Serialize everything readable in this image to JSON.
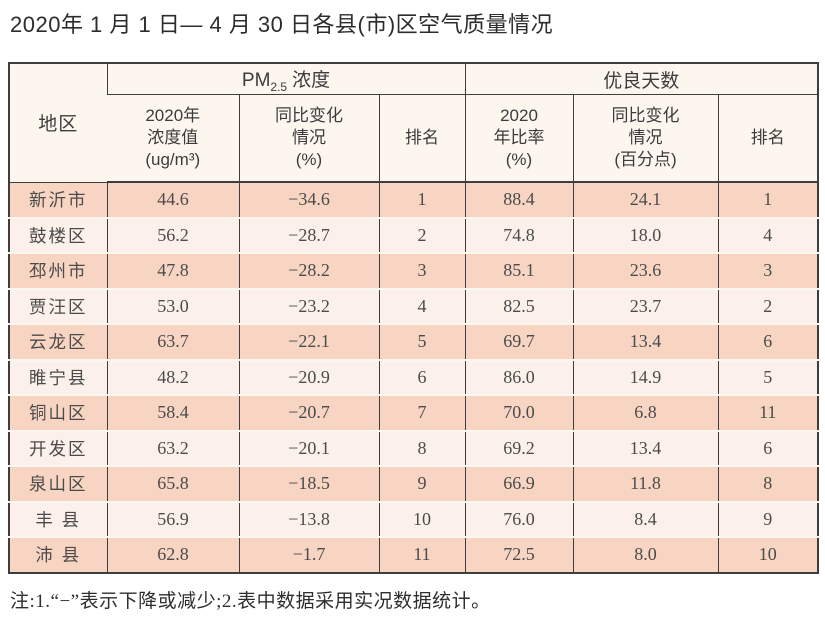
{
  "page": {
    "title": "2020年 1 月 1 日— 4 月 30 日各县(市)区空气质量情况"
  },
  "colors": {
    "row_odd_bg": "#f8d5c3",
    "row_even_bg": "#fbf1ea",
    "header_bg": "#fdf6ef",
    "border": "#3e3e3e",
    "text": "#4b4b4b"
  },
  "table": {
    "header": {
      "region": "地区",
      "pm_group": {
        "prefix": "PM",
        "sub": "2.5",
        "suffix": "浓度"
      },
      "good_days_group": "优良天数",
      "sub_headers": [
        "2020年\n浓度值\n(ug/m³)",
        "同比变化\n情况\n(%)",
        "排名",
        "2020\n年比率\n(%)",
        "同比变化\n情况\n(百分点)",
        "排名"
      ]
    },
    "rows": [
      [
        "新沂市",
        "44.6",
        "−34.6",
        "1",
        "88.4",
        "24.1",
        "1"
      ],
      [
        "鼓楼区",
        "56.2",
        "−28.7",
        "2",
        "74.8",
        "18.0",
        "4"
      ],
      [
        "邳州市",
        "47.8",
        "−28.2",
        "3",
        "85.1",
        "23.6",
        "3"
      ],
      [
        "贾汪区",
        "53.0",
        "−23.2",
        "4",
        "82.5",
        "23.7",
        "2"
      ],
      [
        "云龙区",
        "63.7",
        "−22.1",
        "5",
        "69.7",
        "13.4",
        "6"
      ],
      [
        "睢宁县",
        "48.2",
        "−20.9",
        "6",
        "86.0",
        "14.9",
        "5"
      ],
      [
        "铜山区",
        "58.4",
        "−20.7",
        "7",
        "70.0",
        "6.8",
        "11"
      ],
      [
        "开发区",
        "63.2",
        "−20.1",
        "8",
        "69.2",
        "13.4",
        "6"
      ],
      [
        "泉山区",
        "65.8",
        "−18.5",
        "9",
        "66.9",
        "11.8",
        "8"
      ],
      [
        "丰 县",
        "56.9",
        "−13.8",
        "10",
        "76.0",
        "8.4",
        "9"
      ],
      [
        "沛 县",
        "62.8",
        "−1.7",
        "11",
        "72.5",
        "8.0",
        "10"
      ]
    ]
  },
  "footnote": "注:1.“−”表示下降或减少;2.表中数据采用实况数据统计。",
  "chart_data": {
    "type": "table",
    "title": "2020年1月1日—4月30日各县(市)区空气质量情况",
    "column_groups": [
      "地区",
      "PM2.5浓度",
      "优良天数"
    ],
    "columns": [
      "地区",
      "PM2.5浓度 2020年浓度值(ug/m³)",
      "PM2.5浓度 同比变化情况(%)",
      "PM2.5浓度 排名",
      "优良天数 2020年比率(%)",
      "优良天数 同比变化情况(百分点)",
      "优良天数 排名"
    ],
    "rows": [
      [
        "新沂市",
        44.6,
        -34.6,
        1,
        88.4,
        24.1,
        1
      ],
      [
        "鼓楼区",
        56.2,
        -28.7,
        2,
        74.8,
        18.0,
        4
      ],
      [
        "邳州市",
        47.8,
        -28.2,
        3,
        85.1,
        23.6,
        3
      ],
      [
        "贾汪区",
        53.0,
        -23.2,
        4,
        82.5,
        23.7,
        2
      ],
      [
        "云龙区",
        63.7,
        -22.1,
        5,
        69.7,
        13.4,
        6
      ],
      [
        "睢宁县",
        48.2,
        -20.9,
        6,
        86.0,
        14.9,
        5
      ],
      [
        "铜山区",
        58.4,
        -20.7,
        7,
        70.0,
        6.8,
        11
      ],
      [
        "开发区",
        63.2,
        -20.1,
        8,
        69.2,
        13.4,
        6
      ],
      [
        "泉山区",
        65.8,
        -18.5,
        9,
        66.9,
        11.8,
        8
      ],
      [
        "丰县",
        56.9,
        -13.8,
        10,
        76.0,
        8.4,
        9
      ],
      [
        "沛县",
        62.8,
        -1.7,
        11,
        72.5,
        8.0,
        10
      ]
    ],
    "footnote": "注:1.“−”表示下降或减少;2.表中数据采用实况数据统计。"
  }
}
